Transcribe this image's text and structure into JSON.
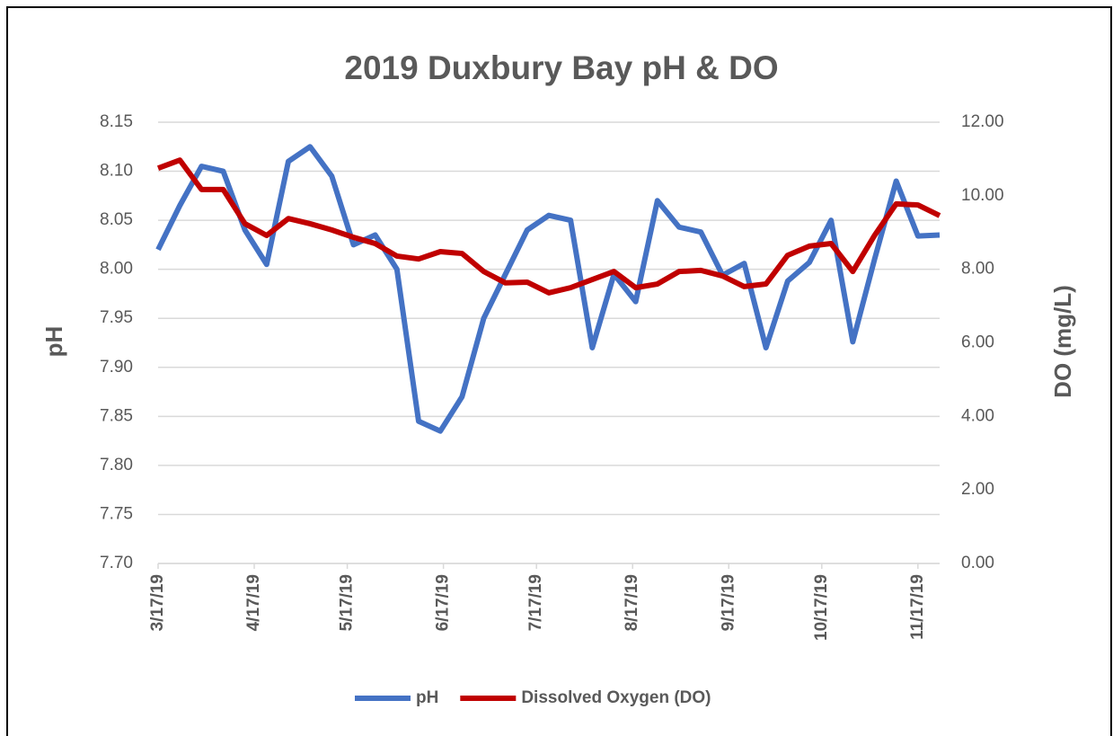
{
  "chart_data": {
    "type": "line",
    "title": "2019 Duxbury Bay pH & DO",
    "y_label": "pH",
    "y2_label": "DO (mg/L)",
    "x": [
      "3/17/19",
      "3/24/19",
      "3/31/19",
      "4/7/19",
      "4/14/19",
      "4/21/19",
      "4/28/19",
      "5/5/19",
      "5/12/19",
      "5/19/19",
      "5/26/19",
      "6/2/19",
      "6/9/19",
      "6/16/19",
      "6/23/19",
      "6/30/19",
      "7/7/19",
      "7/14/19",
      "7/21/19",
      "7/28/19",
      "8/4/19",
      "8/11/19",
      "8/18/19",
      "8/25/19",
      "9/1/19",
      "9/8/19",
      "9/15/19",
      "9/22/19",
      "9/29/19",
      "10/6/19",
      "10/13/19",
      "10/20/19",
      "10/27/19",
      "11/3/19",
      "11/10/19",
      "11/17/19",
      "11/24/19"
    ],
    "series": [
      {
        "name": "pH",
        "color": "#4472c4",
        "axis": "y",
        "values": [
          8.02,
          8.065,
          8.105,
          8.1,
          8.04,
          8.005,
          8.11,
          8.125,
          8.095,
          8.025,
          8.035,
          8.0,
          7.845,
          7.835,
          7.87,
          7.95,
          7.995,
          8.04,
          8.055,
          8.05,
          7.92,
          7.995,
          7.967,
          8.07,
          8.043,
          8.038,
          7.994,
          8.006,
          7.92,
          7.988,
          8.007,
          8.05,
          7.926,
          8.01,
          8.09,
          8.034,
          8.035
        ]
      },
      {
        "name": "Dissolved Oxygen (DO)",
        "color": "#c00000",
        "axis": "y2",
        "values": [
          10.75,
          10.97,
          10.17,
          10.17,
          9.24,
          8.92,
          9.38,
          9.24,
          9.07,
          8.87,
          8.7,
          8.36,
          8.28,
          8.48,
          8.43,
          7.94,
          7.63,
          7.65,
          7.36,
          7.5,
          7.72,
          7.94,
          7.5,
          7.6,
          7.94,
          7.97,
          7.82,
          7.53,
          7.6,
          8.38,
          8.63,
          8.7,
          7.94,
          8.92,
          9.78,
          9.75,
          9.46
        ]
      }
    ],
    "xlim": [
      "3/17/19",
      "11/24/19"
    ],
    "xticks": [
      "3/17/19",
      "4/17/19",
      "5/17/19",
      "6/17/19",
      "7/17/19",
      "8/17/19",
      "9/17/19",
      "10/17/19",
      "11/17/19"
    ],
    "ylim": [
      7.7,
      8.15
    ],
    "yticks": [
      {
        "value": 7.7,
        "label": "7.70"
      },
      {
        "value": 7.75,
        "label": "7.75"
      },
      {
        "value": 7.8,
        "label": "7.80"
      },
      {
        "value": 7.85,
        "label": "7.85"
      },
      {
        "value": 7.9,
        "label": "7.90"
      },
      {
        "value": 7.95,
        "label": "7.95"
      },
      {
        "value": 8.0,
        "label": "8.00"
      },
      {
        "value": 8.05,
        "label": "8.05"
      },
      {
        "value": 8.1,
        "label": "8.10"
      },
      {
        "value": 8.15,
        "label": "8.15"
      }
    ],
    "y2lim": [
      0,
      12
    ],
    "y2ticks": [
      {
        "value": 0,
        "label": "0.00"
      },
      {
        "value": 2,
        "label": "2.00"
      },
      {
        "value": 4,
        "label": "4.00"
      },
      {
        "value": 6,
        "label": "6.00"
      },
      {
        "value": 8,
        "label": "8.00"
      },
      {
        "value": 10,
        "label": "10.00"
      },
      {
        "value": 12,
        "label": "12.00"
      }
    ],
    "grid": true,
    "legend": "bottom"
  }
}
